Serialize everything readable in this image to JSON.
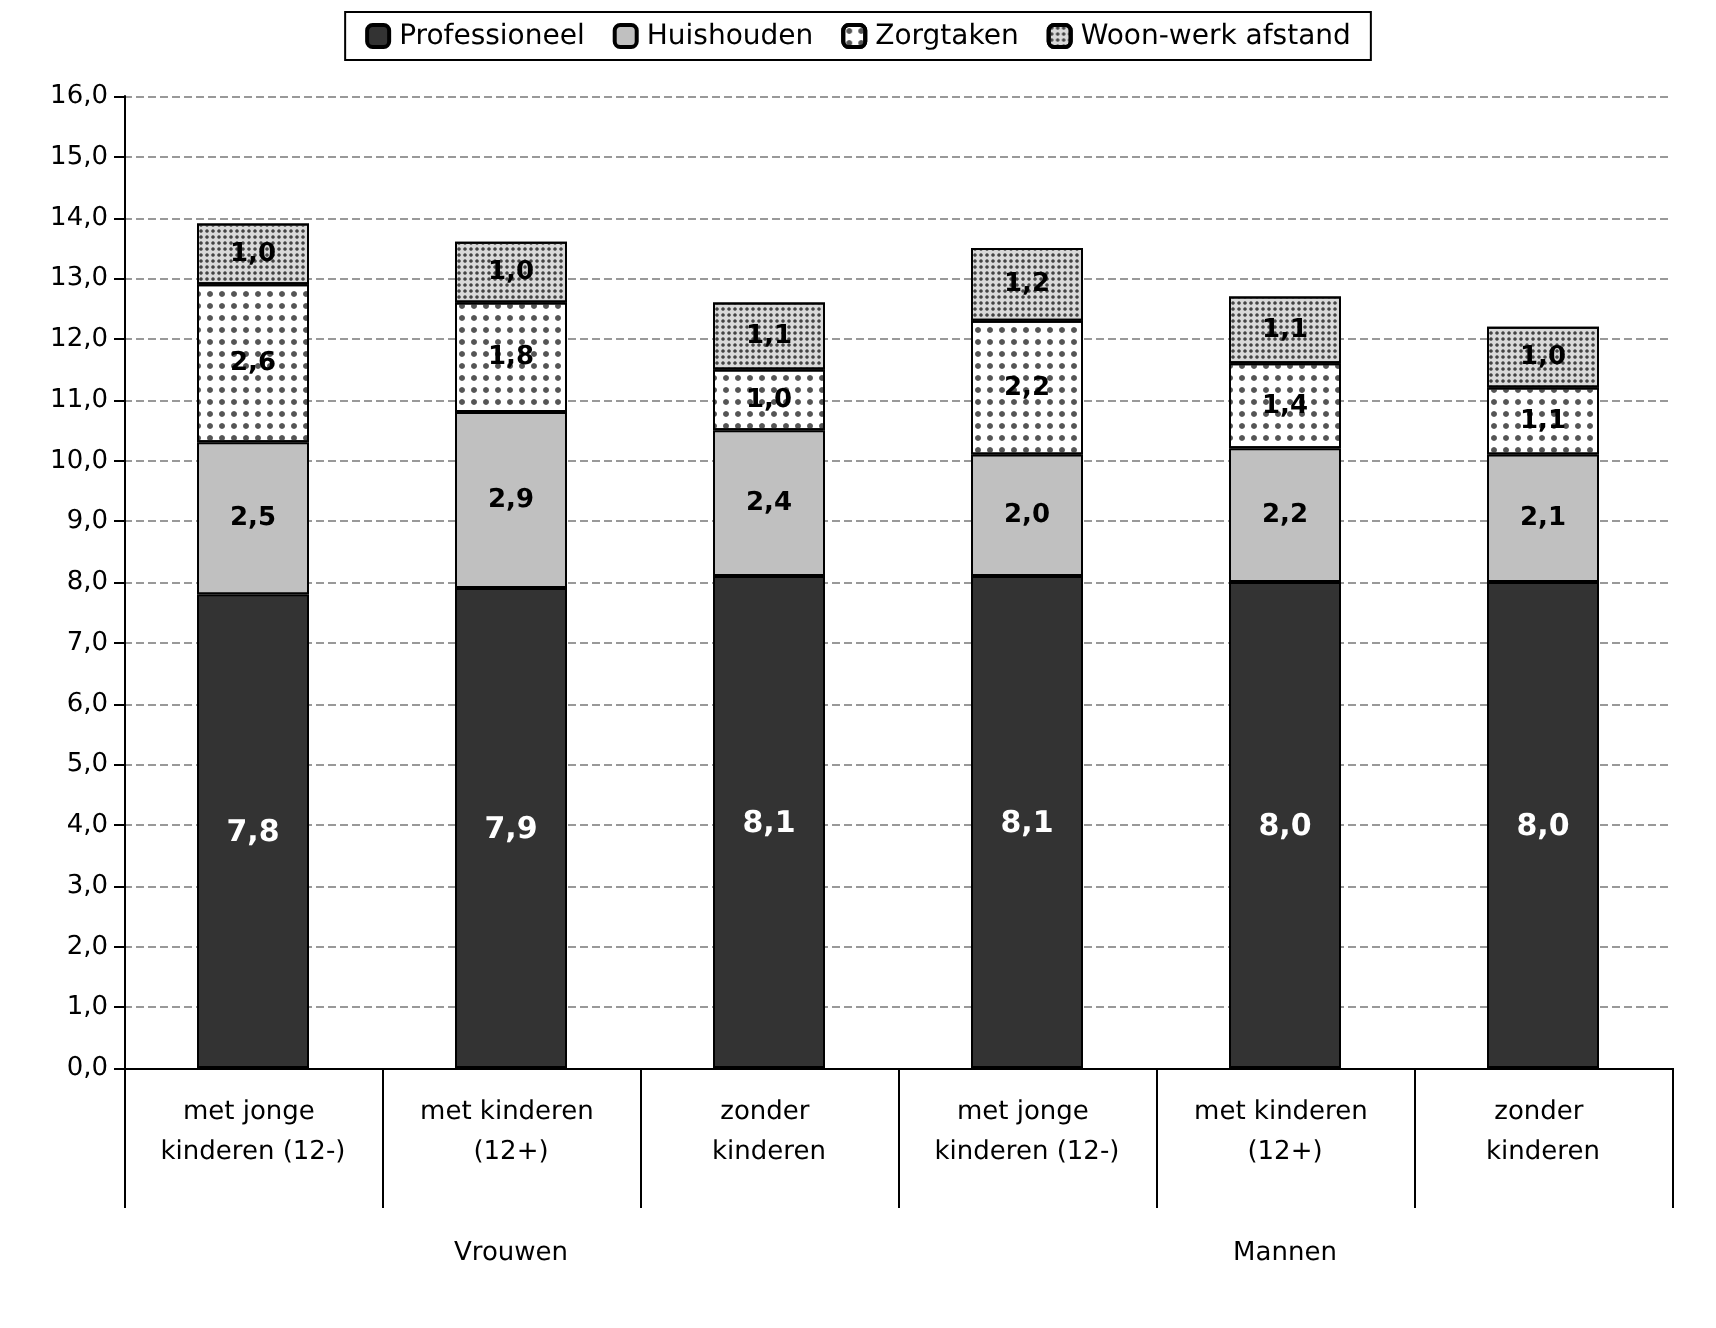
{
  "chart_data": {
    "type": "bar",
    "stacked": true,
    "grid": "y",
    "legend": "top",
    "categories": [
      "met jonge kinderen (12-)",
      "met kinderen (12+)",
      "zonder kinderen",
      "met jonge kinderen (12-)",
      "met kinderen (12+)",
      "zonder kinderen"
    ],
    "annotations": [
      "Vrouwen",
      "Mannen"
    ],
    "ylim": [
      0,
      16
    ],
    "yticks": [
      {
        "value": 0,
        "label": "0,0"
      },
      {
        "value": 1,
        "label": "1,0"
      },
      {
        "value": 2,
        "label": "2,0"
      },
      {
        "value": 3,
        "label": "3,0"
      },
      {
        "value": 4,
        "label": "4,0"
      },
      {
        "value": 5,
        "label": "5,0"
      },
      {
        "value": 6,
        "label": "6,0"
      },
      {
        "value": 7,
        "label": "7,0"
      },
      {
        "value": 8,
        "label": "8,0"
      },
      {
        "value": 9,
        "label": "9,0"
      },
      {
        "value": 10,
        "label": "10,0"
      },
      {
        "value": 11,
        "label": "11,0"
      },
      {
        "value": 12,
        "label": "12,0"
      },
      {
        "value": 13,
        "label": "13,0"
      },
      {
        "value": 14,
        "label": "14,0"
      },
      {
        "value": 15,
        "label": "15,0"
      },
      {
        "value": 16,
        "label": "16,0"
      }
    ],
    "series": [
      {
        "name": "Professioneel",
        "color": "#333333",
        "values": [
          7.8,
          7.9,
          8.1,
          8.1,
          8.0,
          8.0
        ],
        "value_labels": [
          "7,8",
          "7,9",
          "8,1",
          "8,1",
          "8,0",
          "8,0"
        ]
      },
      {
        "name": "Huishouden",
        "color": "#c0c0c0",
        "values": [
          2.5,
          2.9,
          2.4,
          2.0,
          2.2,
          2.1
        ],
        "value_labels": [
          "2,5",
          "2,9",
          "2,4",
          "2,0",
          "2,2",
          "2,1"
        ]
      },
      {
        "name": "Zorgtaken",
        "color": "#ffffff",
        "values": [
          2.6,
          1.8,
          1.0,
          2.2,
          1.4,
          1.1
        ],
        "value_labels": [
          "2,6",
          "1,8",
          "1,0",
          "2,2",
          "1,4",
          "1,1"
        ]
      },
      {
        "name": "Woon-werk afstand",
        "color": "#d9d9d9",
        "values": [
          1.0,
          1.0,
          1.1,
          1.2,
          1.1,
          1.0
        ],
        "value_labels": [
          "1,0",
          "1,0",
          "1,1",
          "1,2",
          "1,1",
          "1,0"
        ]
      }
    ]
  }
}
